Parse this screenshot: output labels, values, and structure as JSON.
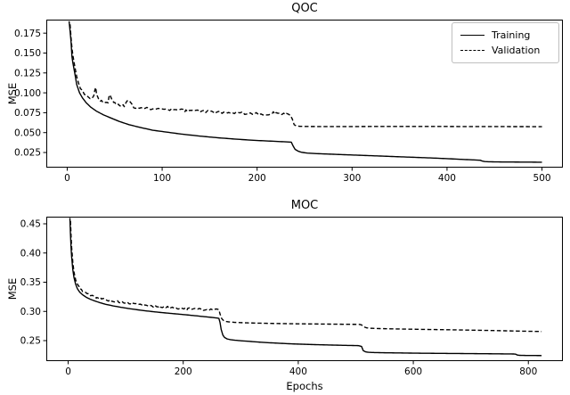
{
  "figure": {
    "background": "#ffffff",
    "line_color": "#000000",
    "legend_border_color": "#bfbfbf"
  },
  "chart_data": [
    {
      "type": "line",
      "title": "QOC",
      "xlabel": "",
      "ylabel": "MSE",
      "xlim": [
        -22,
        522
      ],
      "ylim": [
        0.006,
        0.192
      ],
      "xticks": [
        0,
        100,
        200,
        300,
        400,
        500
      ],
      "xtick_labels": [
        "0",
        "100",
        "200",
        "300",
        "400",
        "500"
      ],
      "yticks": [
        0.025,
        0.05,
        0.075,
        0.1,
        0.125,
        0.15,
        0.175
      ],
      "ytick_labels": [
        "0.025",
        "0.050",
        "0.075",
        "0.100",
        "0.125",
        "0.150",
        "0.175"
      ],
      "grid": false,
      "legend": {
        "position": "upper right"
      },
      "series": [
        {
          "name": "Training",
          "style": "solid",
          "sample_step": 2,
          "points": [
            [
              2,
              0.19
            ],
            [
              3,
              0.178
            ],
            [
              4,
              0.165
            ],
            [
              5,
              0.1455
            ],
            [
              6,
              0.1375
            ],
            [
              8,
              0.1245
            ],
            [
              10,
              0.1105
            ],
            [
              13,
              0.1
            ],
            [
              16,
              0.0938
            ],
            [
              20,
              0.0875
            ],
            [
              25,
              0.0818
            ],
            [
              31,
              0.0768
            ],
            [
              38,
              0.0724
            ],
            [
              46,
              0.0684
            ],
            [
              55,
              0.064
            ],
            [
              65,
              0.06
            ],
            [
              77,
              0.0565
            ],
            [
              90,
              0.053
            ],
            [
              105,
              0.0506
            ],
            [
              120,
              0.0482
            ],
            [
              140,
              0.0456
            ],
            [
              160,
              0.0434
            ],
            [
              180,
              0.0416
            ],
            [
              200,
              0.0401
            ],
            [
              218,
              0.0391
            ],
            [
              230,
              0.0384
            ],
            [
              236,
              0.038
            ],
            [
              238,
              0.033
            ],
            [
              240,
              0.029
            ],
            [
              243,
              0.0268
            ],
            [
              247,
              0.0252
            ],
            [
              253,
              0.0243
            ],
            [
              261,
              0.0237
            ],
            [
              280,
              0.0228
            ],
            [
              300,
              0.0219
            ],
            [
              320,
              0.021
            ],
            [
              340,
              0.0201
            ],
            [
              360,
              0.0192
            ],
            [
              380,
              0.0183
            ],
            [
              400,
              0.0173
            ],
            [
              415,
              0.0164
            ],
            [
              428,
              0.0157
            ],
            [
              435,
              0.0153
            ],
            [
              437,
              0.0143
            ],
            [
              440,
              0.0136
            ],
            [
              446,
              0.0133
            ],
            [
              458,
              0.0131
            ],
            [
              475,
              0.013
            ],
            [
              500,
              0.0128
            ]
          ]
        },
        {
          "name": "Validation",
          "style": "dashed",
          "sample_step": 2,
          "noise": {
            "amplitude": 0.0016,
            "from": 14,
            "to": 234,
            "seed": 9
          },
          "points": [
            [
              3,
              0.186
            ],
            [
              4,
              0.17
            ],
            [
              5,
              0.156
            ],
            [
              6,
              0.147
            ],
            [
              8,
              0.133
            ],
            [
              10,
              0.1205
            ],
            [
              12,
              0.112
            ],
            [
              14,
              0.106
            ],
            [
              16,
              0.1022
            ],
            [
              18,
              0.0992
            ],
            [
              20,
              0.0962
            ],
            [
              24,
              0.0922
            ],
            [
              28,
              0.095
            ],
            [
              29,
              0.104
            ],
            [
              30,
              0.1062
            ],
            [
              31,
              0.0975
            ],
            [
              33,
              0.0922
            ],
            [
              36,
              0.0892
            ],
            [
              40,
              0.0872
            ],
            [
              43,
              0.0878
            ],
            [
              44,
              0.095
            ],
            [
              45,
              0.0962
            ],
            [
              47,
              0.0906
            ],
            [
              50,
              0.0868
            ],
            [
              55,
              0.0846
            ],
            [
              60,
              0.0836
            ],
            [
              63,
              0.0898
            ],
            [
              65,
              0.0918
            ],
            [
              67,
              0.0866
            ],
            [
              70,
              0.0822
            ],
            [
              76,
              0.0812
            ],
            [
              82,
              0.0804
            ],
            [
              90,
              0.0798
            ],
            [
              100,
              0.0794
            ],
            [
              112,
              0.0786
            ],
            [
              125,
              0.0778
            ],
            [
              140,
              0.0768
            ],
            [
              155,
              0.076
            ],
            [
              170,
              0.0752
            ],
            [
              185,
              0.0744
            ],
            [
              200,
              0.0738
            ],
            [
              212,
              0.0733
            ],
            [
              217,
              0.0752
            ],
            [
              220,
              0.074
            ],
            [
              226,
              0.0731
            ],
            [
              231,
              0.0726
            ],
            [
              235,
              0.0716
            ],
            [
              237,
              0.0672
            ],
            [
              239,
              0.06
            ],
            [
              241,
              0.0586
            ],
            [
              245,
              0.0579
            ],
            [
              255,
              0.0577
            ],
            [
              280,
              0.0576
            ],
            [
              320,
              0.0577
            ],
            [
              360,
              0.0577
            ],
            [
              400,
              0.0577
            ],
            [
              440,
              0.0576
            ],
            [
              500,
              0.0575
            ]
          ]
        }
      ]
    },
    {
      "type": "line",
      "title": "MOC",
      "xlabel": "Epochs",
      "ylabel": "MSE",
      "xlim": [
        -38,
        860
      ],
      "ylim": [
        0.2149,
        0.4622
      ],
      "xticks": [
        0,
        200,
        400,
        600,
        800
      ],
      "xtick_labels": [
        "0",
        "200",
        "400",
        "600",
        "800"
      ],
      "yticks": [
        0.25,
        0.3,
        0.35,
        0.4,
        0.45
      ],
      "ytick_labels": [
        "0.25",
        "0.30",
        "0.35",
        "0.40",
        "0.45"
      ],
      "grid": false,
      "legend": null,
      "series": [
        {
          "name": "Training",
          "style": "solid",
          "sample_step": 3,
          "points": [
            [
              3,
              0.46
            ],
            [
              4,
              0.432
            ],
            [
              5,
              0.41
            ],
            [
              6,
              0.394
            ],
            [
              8,
              0.372
            ],
            [
              10,
              0.3585
            ],
            [
              13,
              0.3465
            ],
            [
              16,
              0.339
            ],
            [
              20,
              0.333
            ],
            [
              25,
              0.3285
            ],
            [
              31,
              0.3245
            ],
            [
              38,
              0.321
            ],
            [
              46,
              0.318
            ],
            [
              55,
              0.315
            ],
            [
              65,
              0.3122
            ],
            [
              78,
              0.3095
            ],
            [
              92,
              0.307
            ],
            [
              108,
              0.3045
            ],
            [
              125,
              0.3022
            ],
            [
              145,
              0.2998
            ],
            [
              165,
              0.2978
            ],
            [
              185,
              0.296
            ],
            [
              205,
              0.2942
            ],
            [
              225,
              0.2922
            ],
            [
              245,
              0.2902
            ],
            [
              258,
              0.2888
            ],
            [
              262,
              0.288
            ],
            [
              264,
              0.281
            ],
            [
              266,
              0.269
            ],
            [
              269,
              0.2592
            ],
            [
              272,
              0.2553
            ],
            [
              276,
              0.253
            ],
            [
              282,
              0.2516
            ],
            [
              290,
              0.2507
            ],
            [
              300,
              0.2498
            ],
            [
              315,
              0.2487
            ],
            [
              335,
              0.2472
            ],
            [
              360,
              0.2458
            ],
            [
              390,
              0.2444
            ],
            [
              420,
              0.2434
            ],
            [
              450,
              0.2426
            ],
            [
              480,
              0.2419
            ],
            [
              505,
              0.2414
            ],
            [
              510,
              0.24
            ],
            [
              513,
              0.2328
            ],
            [
              517,
              0.2308
            ],
            [
              522,
              0.23
            ],
            [
              532,
              0.2296
            ],
            [
              550,
              0.2292
            ],
            [
              575,
              0.2289
            ],
            [
              605,
              0.2285
            ],
            [
              640,
              0.2282
            ],
            [
              680,
              0.2279
            ],
            [
              720,
              0.2276
            ],
            [
              755,
              0.2273
            ],
            [
              775,
              0.2271
            ],
            [
              778,
              0.2268
            ],
            [
              781,
              0.2253
            ],
            [
              785,
              0.2248
            ],
            [
              795,
              0.2246
            ],
            [
              810,
              0.2245
            ],
            [
              823,
              0.2244
            ]
          ]
        },
        {
          "name": "Validation",
          "style": "dashed",
          "sample_step": 3,
          "noise": {
            "amplitude": 0.0017,
            "from": 16,
            "to": 258,
            "seed": 5
          },
          "points": [
            [
              4,
              0.455
            ],
            [
              5,
              0.43
            ],
            [
              6,
              0.41
            ],
            [
              8,
              0.385
            ],
            [
              10,
              0.368
            ],
            [
              13,
              0.354
            ],
            [
              16,
              0.346
            ],
            [
              20,
              0.34
            ],
            [
              25,
              0.3355
            ],
            [
              30,
              0.332
            ],
            [
              36,
              0.329
            ],
            [
              43,
              0.3262
            ],
            [
              50,
              0.324
            ],
            [
              58,
              0.322
            ],
            [
              67,
              0.32
            ],
            [
              77,
              0.318
            ],
            [
              88,
              0.3162
            ],
            [
              100,
              0.3145
            ],
            [
              113,
              0.3128
            ],
            [
              127,
              0.3112
            ],
            [
              142,
              0.3096
            ],
            [
              158,
              0.3082
            ],
            [
              175,
              0.3068
            ],
            [
              192,
              0.3056
            ],
            [
              208,
              0.3046
            ],
            [
              222,
              0.3038
            ],
            [
              235,
              0.3032
            ],
            [
              245,
              0.3028
            ],
            [
              251,
              0.3038
            ],
            [
              256,
              0.3046
            ],
            [
              259,
              0.304
            ],
            [
              262,
              0.3028
            ],
            [
              264,
              0.2955
            ],
            [
              267,
              0.2875
            ],
            [
              270,
              0.2845
            ],
            [
              274,
              0.2828
            ],
            [
              280,
              0.282
            ],
            [
              290,
              0.2812
            ],
            [
              305,
              0.2806
            ],
            [
              325,
              0.28
            ],
            [
              350,
              0.2795
            ],
            [
              380,
              0.279
            ],
            [
              415,
              0.2786
            ],
            [
              450,
              0.2783
            ],
            [
              480,
              0.278
            ],
            [
              506,
              0.2778
            ],
            [
              510,
              0.2769
            ],
            [
              514,
              0.2735
            ],
            [
              519,
              0.2719
            ],
            [
              526,
              0.2712
            ],
            [
              538,
              0.2707
            ],
            [
              555,
              0.2703
            ],
            [
              575,
              0.2699
            ],
            [
              600,
              0.2695
            ],
            [
              625,
              0.2691
            ],
            [
              655,
              0.2687
            ],
            [
              685,
              0.2682
            ],
            [
              715,
              0.2677
            ],
            [
              745,
              0.2671
            ],
            [
              775,
              0.2665
            ],
            [
              800,
              0.266
            ],
            [
              823,
              0.2656
            ]
          ]
        }
      ]
    }
  ]
}
